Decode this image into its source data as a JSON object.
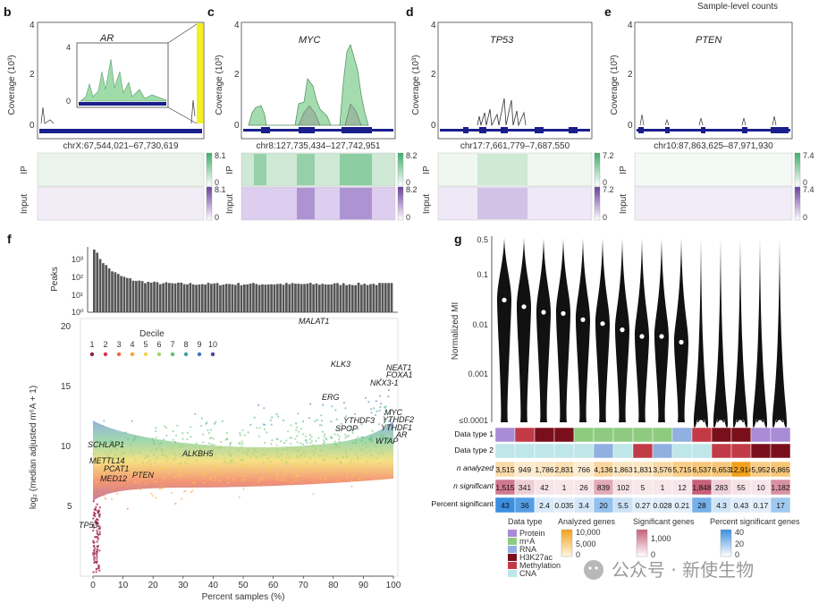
{
  "header": {
    "sample_level_counts": "Sample-level counts"
  },
  "panels": {
    "b": {
      "letter": "b",
      "gene": "AR",
      "coords": "chrX:67,544,021–67,730,619",
      "ip_max": "8.1",
      "input_max": "8.1",
      "zero": "0",
      "inset_max": "4",
      "inset_zero": "0"
    },
    "c": {
      "letter": "c",
      "gene": "MYC",
      "coords": "chr8:127,735,434–127,742,951",
      "ip_max": "8.2",
      "input_max": "8.2",
      "zero": "0"
    },
    "d": {
      "letter": "d",
      "gene": "TP53",
      "coords": "chr17:7,661,779–7,687,550",
      "ip_max": "7.2",
      "input_max": "7.2",
      "zero": "0"
    },
    "e": {
      "letter": "e",
      "gene": "PTEN",
      "coords": "chr10:87,863,625–87,971,930",
      "ip_max": "7.4",
      "input_max": "7.4",
      "zero": "0"
    }
  },
  "coverage_axis": {
    "label": "Coverage (10³)",
    "ticks": [
      "4",
      "2",
      "0"
    ]
  },
  "track_labels": {
    "ip": "IP",
    "input": "Input"
  },
  "panel_f": {
    "letter": "f",
    "peaks_label": "Peaks",
    "peaks_ticks": [
      "10³",
      "10²",
      "10¹",
      "10⁰"
    ],
    "ylabel": "log₂ (median adjusted m⁶A + 1)",
    "xlabel": "Percent samples (%)",
    "xticks": [
      "0",
      "10",
      "20",
      "30",
      "40",
      "50",
      "60",
      "70",
      "80",
      "90",
      "100"
    ],
    "yticks": [
      "20",
      "15",
      "10",
      "5"
    ],
    "decile_title": "Decile",
    "deciles": [
      "1",
      "2",
      "3",
      "4",
      "5",
      "6",
      "7",
      "8",
      "9",
      "10"
    ],
    "decile_colors": [
      "#9a1a4a",
      "#d8344c",
      "#f06a3a",
      "#f7a23a",
      "#f2d450",
      "#a8d36b",
      "#62bf76",
      "#3aa4a0",
      "#3f73c0",
      "#5a3a98"
    ],
    "genes": [
      "MALAT1",
      "KLK3",
      "NEAT1",
      "FOXA1",
      "NKX3-1",
      "ERG",
      "MYC",
      "YTHDF3",
      "YTHDF2",
      "SPOP",
      "YTHDF1",
      "AR",
      "WTAP",
      "SCHLAP1",
      "ALKBH5",
      "METTL14",
      "PCAT1",
      "PTEN",
      "MED12",
      "TP53"
    ]
  },
  "panel_g": {
    "letter": "g",
    "ylabel": "Normalized MI",
    "yticks": [
      "0.5",
      "0.1",
      "0.01",
      "0.001",
      "≤0.0001"
    ],
    "row_labels": [
      "Data type 1",
      "Data type 2",
      "n analyzed",
      "n significant",
      "Percent significant"
    ],
    "n_analyzed": [
      "3,515",
      "949",
      "1,786",
      "2,831",
      "766",
      "4,136",
      "1,863",
      "1,831",
      "3,576",
      "5,715",
      "6,537",
      "6,653",
      "12,914",
      "5,952",
      "6,865"
    ],
    "n_significant": [
      "1,515",
      "341",
      "42",
      "1",
      "26",
      "839",
      "102",
      "5",
      "1",
      "12",
      "1,848",
      "283",
      "55",
      "10",
      "1,182"
    ],
    "percent_significant": [
      "43",
      "36",
      "2.4",
      "0.035",
      "3.4",
      "20",
      "5.5",
      "0.27",
      "0.028",
      "0.21",
      "28",
      "4.3",
      "0.43",
      "0.17",
      "17"
    ],
    "medians_mi": [
      0.03,
      0.022,
      0.017,
      0.016,
      0.012,
      0.01,
      0.0075,
      0.0055,
      0.0055,
      0.0042,
      0.0001,
      0.0001,
      0.0001,
      0.0001,
      0.0001
    ],
    "legend": {
      "data_type_title": "Data type",
      "data_types": [
        "Protein",
        "m⁶A",
        "RNA",
        "H3K27ac",
        "Methylation",
        "CNA"
      ],
      "data_type_colors": [
        "#a98bd6",
        "#8ecb80",
        "#8fb0e0",
        "#7a0f1c",
        "#c23a46",
        "#bfe6e8"
      ],
      "analyzed_title": "Analyzed genes",
      "analyzed_ticks": [
        "10,000",
        "5,000",
        "0"
      ],
      "significant_title": "Significant genes",
      "significant_ticks": [
        "1,000",
        "0"
      ],
      "percent_title": "Percent significant genes",
      "percent_ticks": [
        "40",
        "20",
        "0"
      ]
    }
  },
  "watermark": {
    "text": "公众号 · 新使生物"
  }
}
